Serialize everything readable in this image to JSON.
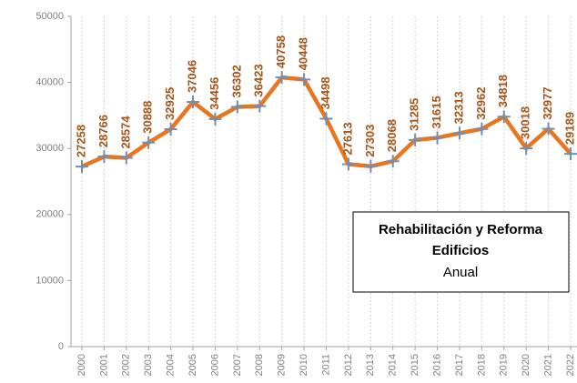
{
  "chart_data": {
    "type": "line",
    "title_lines": [
      "Rehabilitación y Reforma",
      "Edificios"
    ],
    "subtitle": "Anual",
    "categories": [
      "2000",
      "2001",
      "2002",
      "2003",
      "2004",
      "2005",
      "2006",
      "2007",
      "2008",
      "2009",
      "2010",
      "2011",
      "2012",
      "2013",
      "2014",
      "2015",
      "2016",
      "2017",
      "2018",
      "2019",
      "2020",
      "2021",
      "2022"
    ],
    "series": [
      {
        "name": "Anual",
        "color": "#e8761e",
        "marker_color": "#6f8fb8",
        "values": [
          27258,
          28766,
          28574,
          30888,
          32925,
          37046,
          34456,
          36302,
          36423,
          40758,
          40448,
          34498,
          27613,
          27303,
          28068,
          31285,
          31615,
          32313,
          32962,
          34818,
          30018,
          32977,
          29189
        ]
      }
    ],
    "ylim": [
      0,
      50000
    ],
    "yticks": [
      0,
      10000,
      20000,
      30000,
      40000,
      50000
    ],
    "grid": true
  }
}
